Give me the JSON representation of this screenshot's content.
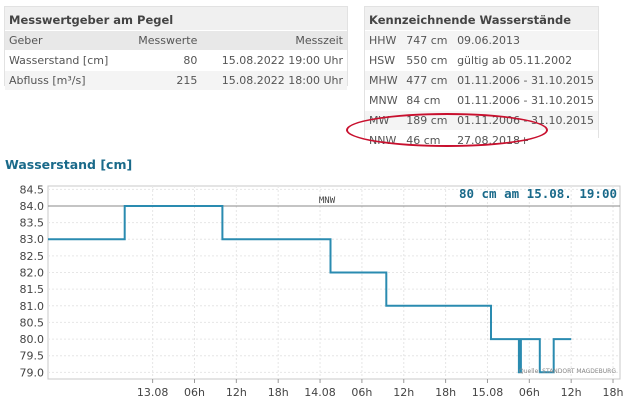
{
  "gauge_panel": {
    "title": "Messwertgeber am Pegel",
    "headers": [
      "Geber",
      "Messwerte",
      "Messzeit"
    ],
    "rows": [
      [
        "Wasserstand [cm]",
        "80",
        "15.08.2022 19:00 Uhr"
      ],
      [
        "Abfluss [m³/s]",
        "215",
        "15.08.2022 18:00 Uhr"
      ]
    ]
  },
  "levels_panel": {
    "title": "Kennzeichnende Wasserstände",
    "rows": [
      [
        "HHW",
        "747 cm",
        "09.06.2013"
      ],
      [
        "HSW",
        "550 cm",
        "gültig ab 05.11.2002"
      ],
      [
        "MHW",
        "477 cm",
        "01.11.2006 - 31.10.2015"
      ],
      [
        "MNW",
        "84 cm",
        "01.11.2006 - 31.10.2015"
      ],
      [
        "MW",
        "189 cm",
        "01.11.2006 - 31.10.2015"
      ],
      [
        "NNW",
        "46 cm",
        "27.08.2018+"
      ]
    ],
    "highlight_color": "#c8102e"
  },
  "chart_title": "Wasserstand [cm]",
  "chart_data": {
    "type": "line",
    "title": "Wasserstand [cm]",
    "annotation": "80 cm am 15.08. 19:00",
    "source": "Quelle: STANDORT MAGDEBURG",
    "reference_line": {
      "label": "MNW",
      "value": 84.0
    },
    "ylim": [
      78.8,
      84.6
    ],
    "y_ticks": [
      "84.5",
      "84.0",
      "83.5",
      "83.0",
      "82.5",
      "82.0",
      "81.5",
      "81.0",
      "80.5",
      "80.0",
      "79.5",
      "79.0"
    ],
    "x_range_hours": [
      -15,
      67
    ],
    "x_ticks": [
      "13.08",
      "06h",
      "12h",
      "18h",
      "14.08",
      "06h",
      "12h",
      "18h",
      "15.08",
      "06h",
      "12h",
      "18h"
    ],
    "grid": true,
    "series": [
      {
        "color": "#2a8bb0",
        "points": [
          [
            -15,
            83
          ],
          [
            -4,
            83
          ],
          [
            -4,
            84
          ],
          [
            10,
            84
          ],
          [
            10,
            83
          ],
          [
            25.5,
            83
          ],
          [
            25.5,
            82
          ],
          [
            33.5,
            82
          ],
          [
            33.5,
            81
          ],
          [
            48.5,
            81
          ],
          [
            48.5,
            80
          ],
          [
            52.5,
            80
          ],
          [
            52.5,
            79
          ],
          [
            52.8,
            79
          ],
          [
            52.8,
            80
          ],
          [
            55.5,
            80
          ],
          [
            55.5,
            79
          ],
          [
            57.5,
            79
          ],
          [
            57.5,
            80
          ],
          [
            60,
            80
          ]
        ]
      }
    ],
    "colors": {
      "line": "#2a8bb0",
      "annotation": "#1a6a8a",
      "reference": "#888888"
    }
  }
}
